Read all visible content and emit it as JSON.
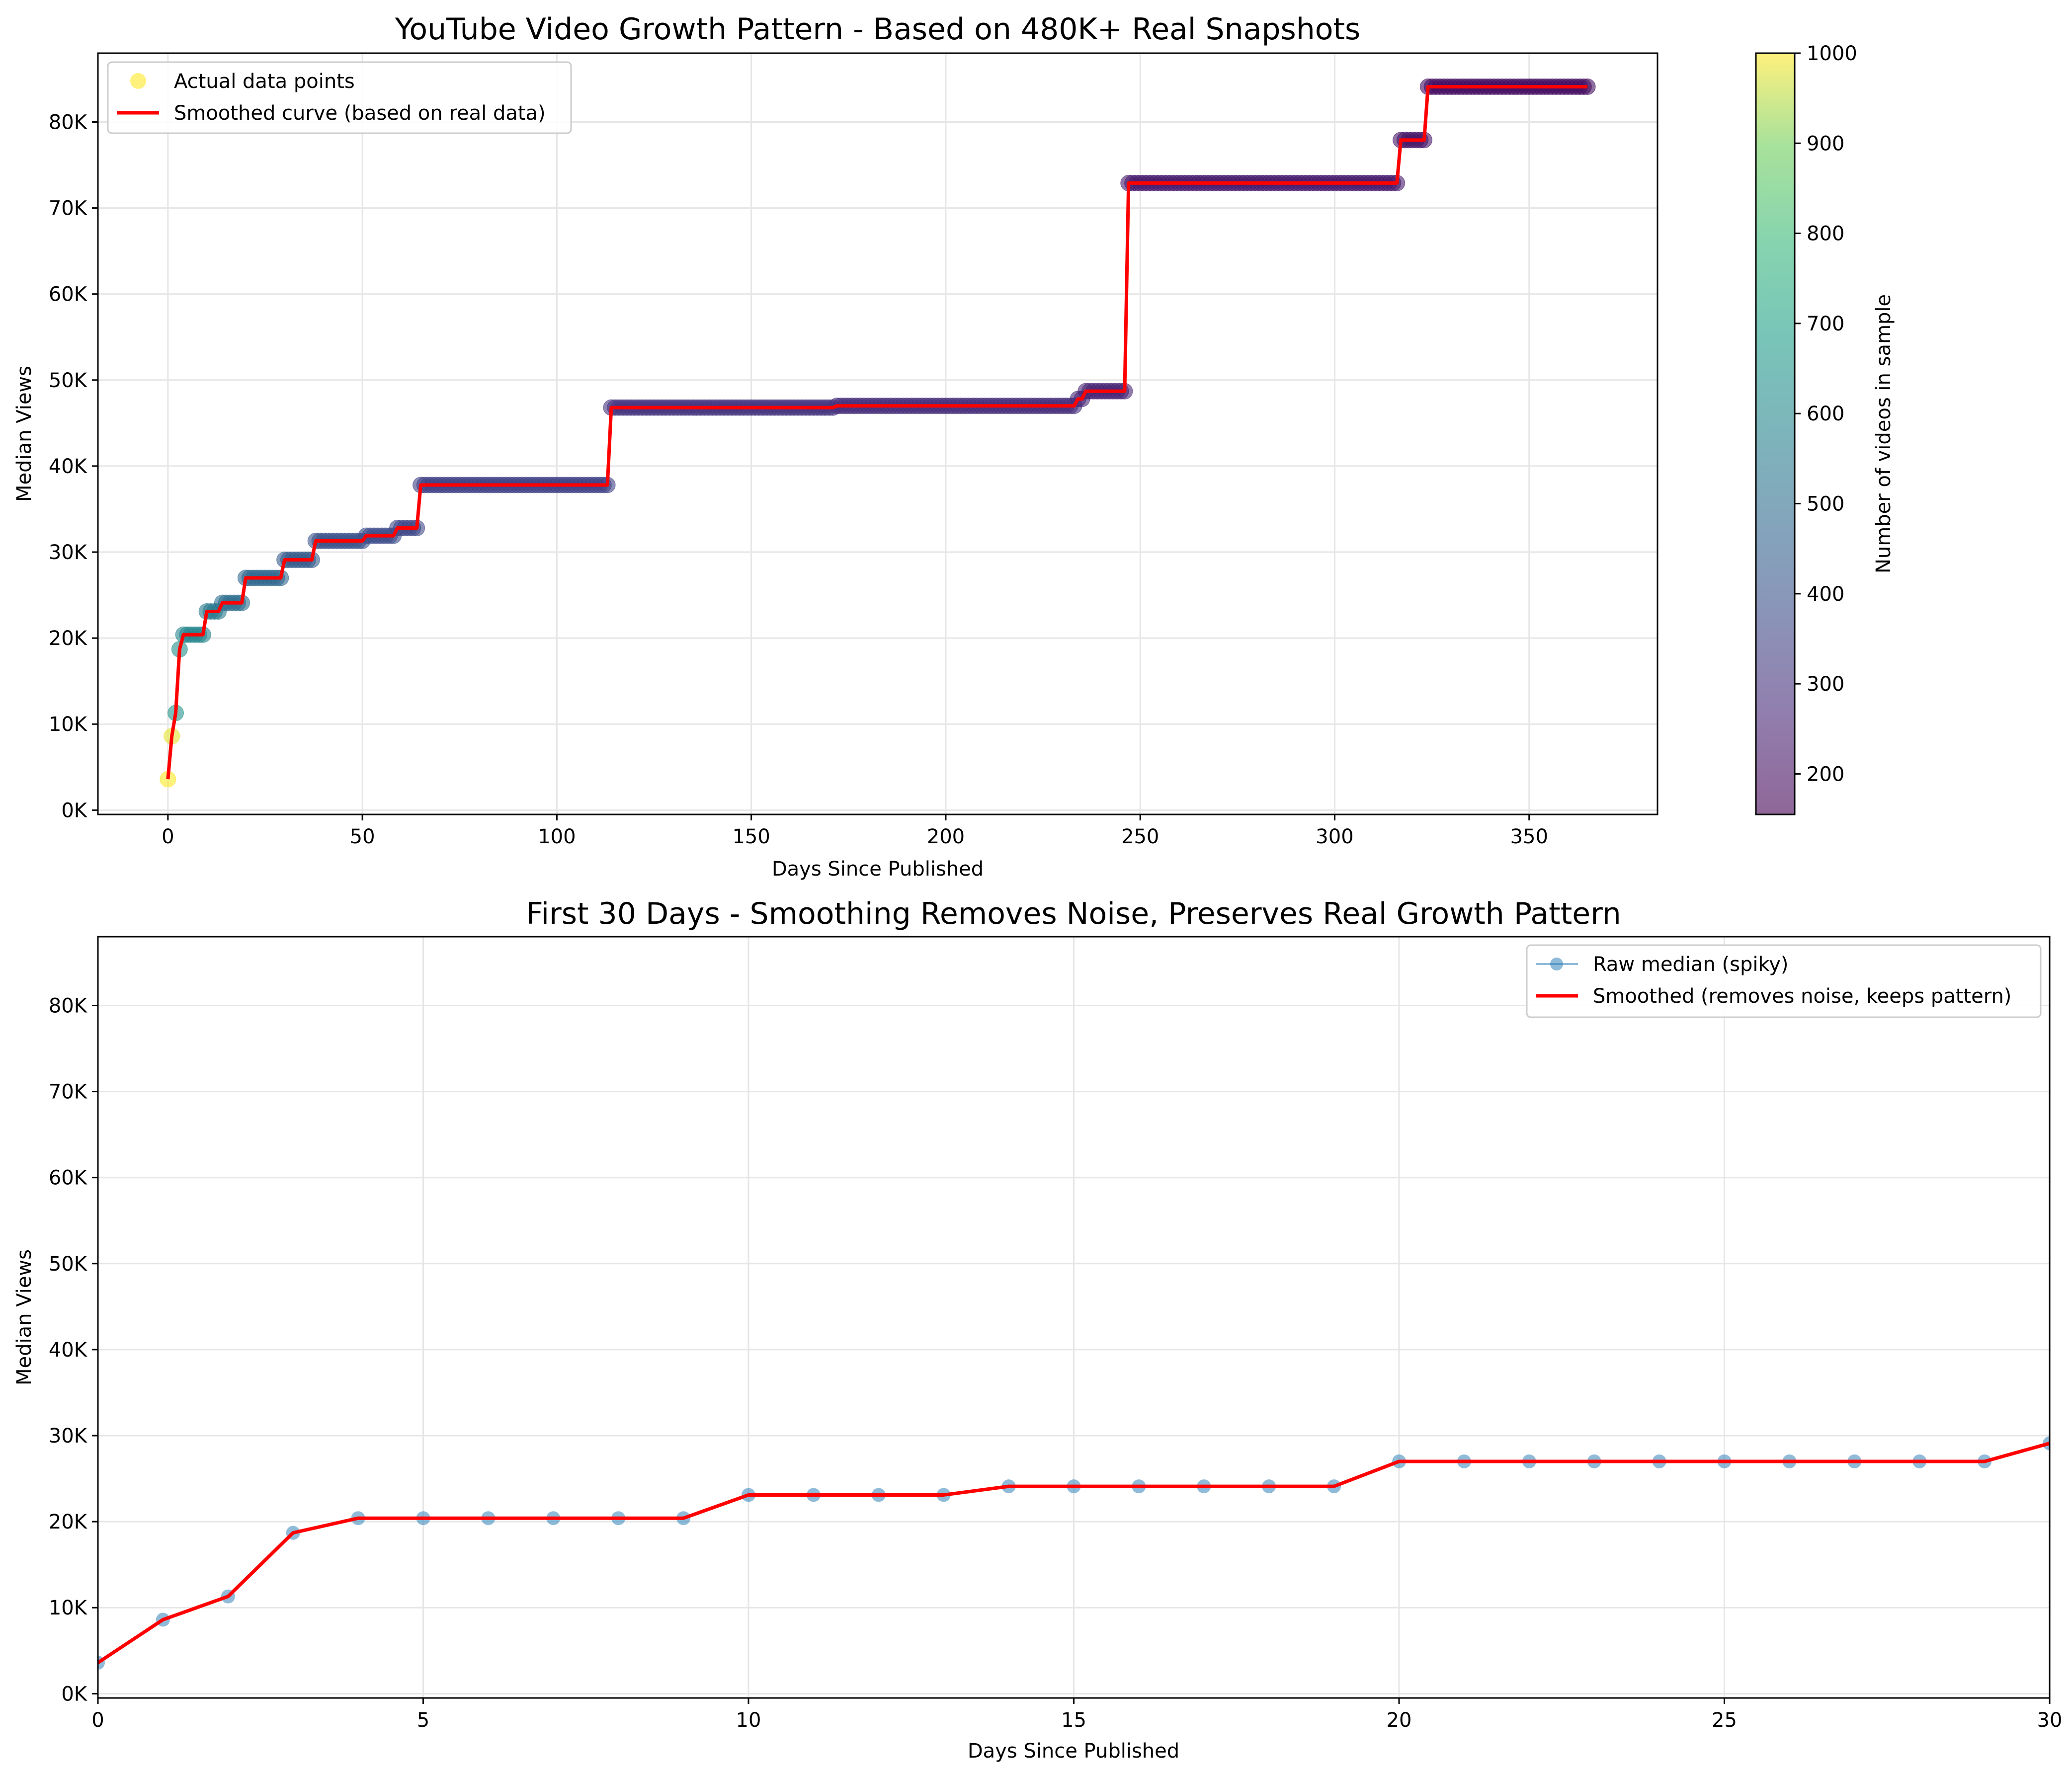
{
  "colors": {
    "smoothed": "#ff0000",
    "raw": "#1f77b4",
    "grid": "#e6e6e6",
    "colormap": "viridis"
  },
  "chart_data": [
    {
      "type": "scatter",
      "title": "YouTube Video Growth Pattern - Based on 480K+ Real Snapshots",
      "xlabel": "Days Since Published",
      "ylabel": "Median Views",
      "xlim": [
        -18,
        383
      ],
      "ylim": [
        -500,
        88000
      ],
      "xticks": [
        0,
        50,
        100,
        150,
        200,
        250,
        300,
        350
      ],
      "yticks": [
        0,
        10000,
        20000,
        30000,
        40000,
        50000,
        60000,
        70000,
        80000
      ],
      "ytick_labels": [
        "0K",
        "10K",
        "20K",
        "30K",
        "40K",
        "50K",
        "60K",
        "70K",
        "80K"
      ],
      "grid": true,
      "legend": {
        "position": "top-left",
        "entries": [
          "Actual data points",
          "Smoothed curve (based on real data)"
        ]
      },
      "colorbar": {
        "label": "Number of videos in sample",
        "range": [
          155,
          1000
        ],
        "ticks": [
          200,
          300,
          400,
          500,
          600,
          700,
          800,
          900,
          1000
        ]
      },
      "steps": [
        {
          "start": 0,
          "end": 0,
          "y": 3600,
          "n": 1000
        },
        {
          "start": 1,
          "end": 1,
          "y": 8600,
          "n": 980
        },
        {
          "start": 2,
          "end": 2,
          "y": 11300,
          "n": 650
        },
        {
          "start": 3,
          "end": 3,
          "y": 18700,
          "n": 620
        },
        {
          "start": 4,
          "end": 9,
          "y": 20400,
          "n": 590
        },
        {
          "start": 10,
          "end": 13,
          "y": 23100,
          "n": 540
        },
        {
          "start": 14,
          "end": 19,
          "y": 24100,
          "n": 500
        },
        {
          "start": 20,
          "end": 29,
          "y": 27000,
          "n": 470
        },
        {
          "start": 30,
          "end": 37,
          "y": 29100,
          "n": 430
        },
        {
          "start": 38,
          "end": 50,
          "y": 31300,
          "n": 400
        },
        {
          "start": 51,
          "end": 58,
          "y": 31900,
          "n": 380
        },
        {
          "start": 59,
          "end": 64,
          "y": 32800,
          "n": 360
        },
        {
          "start": 65,
          "end": 113,
          "y": 37800,
          "n": 340
        },
        {
          "start": 114,
          "end": 171,
          "y": 46800,
          "n": 300
        },
        {
          "start": 172,
          "end": 233,
          "y": 47000,
          "n": 280
        },
        {
          "start": 234,
          "end": 235,
          "y": 47800,
          "n": 260
        },
        {
          "start": 236,
          "end": 246,
          "y": 48700,
          "n": 250
        },
        {
          "start": 247,
          "end": 316,
          "y": 72900,
          "n": 230
        },
        {
          "start": 317,
          "end": 323,
          "y": 77900,
          "n": 210
        },
        {
          "start": 324,
          "end": 365,
          "y": 84100,
          "n": 190
        }
      ]
    },
    {
      "type": "line",
      "title": "First 30 Days - Smoothing Removes Noise, Preserves Real Growth Pattern",
      "xlabel": "Days Since Published",
      "ylabel": "Median Views",
      "xlim": [
        0,
        30
      ],
      "ylim": [
        -500,
        88000
      ],
      "xticks": [
        0,
        5,
        10,
        15,
        20,
        25,
        30
      ],
      "yticks": [
        0,
        10000,
        20000,
        30000,
        40000,
        50000,
        60000,
        70000,
        80000
      ],
      "ytick_labels": [
        "0K",
        "10K",
        "20K",
        "30K",
        "40K",
        "50K",
        "60K",
        "70K",
        "80K"
      ],
      "grid": true,
      "legend": {
        "position": "top-right",
        "entries": [
          "Raw median (spiky)",
          "Smoothed (removes noise, keeps pattern)"
        ]
      },
      "x": [
        0,
        1,
        2,
        3,
        4,
        5,
        6,
        7,
        8,
        9,
        10,
        11,
        12,
        13,
        14,
        15,
        16,
        17,
        18,
        19,
        20,
        21,
        22,
        23,
        24,
        25,
        26,
        27,
        28,
        29,
        30
      ],
      "series": [
        {
          "name": "Raw median (spiky)",
          "values": [
            3600,
            8600,
            11300,
            18700,
            20400,
            20400,
            20400,
            20400,
            20400,
            20400,
            23100,
            23100,
            23100,
            23100,
            24100,
            24100,
            24100,
            24100,
            24100,
            24100,
            27000,
            27000,
            27000,
            27000,
            27000,
            27000,
            27000,
            27000,
            27000,
            27000,
            29100
          ]
        },
        {
          "name": "Smoothed (removes noise, keeps pattern)",
          "values": [
            3600,
            8600,
            11300,
            18700,
            20400,
            20400,
            20400,
            20400,
            20400,
            20400,
            23100,
            23100,
            23100,
            23100,
            24100,
            24100,
            24100,
            24100,
            24100,
            24100,
            27000,
            27000,
            27000,
            27000,
            27000,
            27000,
            27000,
            27000,
            27000,
            27000,
            29100
          ]
        }
      ]
    }
  ]
}
